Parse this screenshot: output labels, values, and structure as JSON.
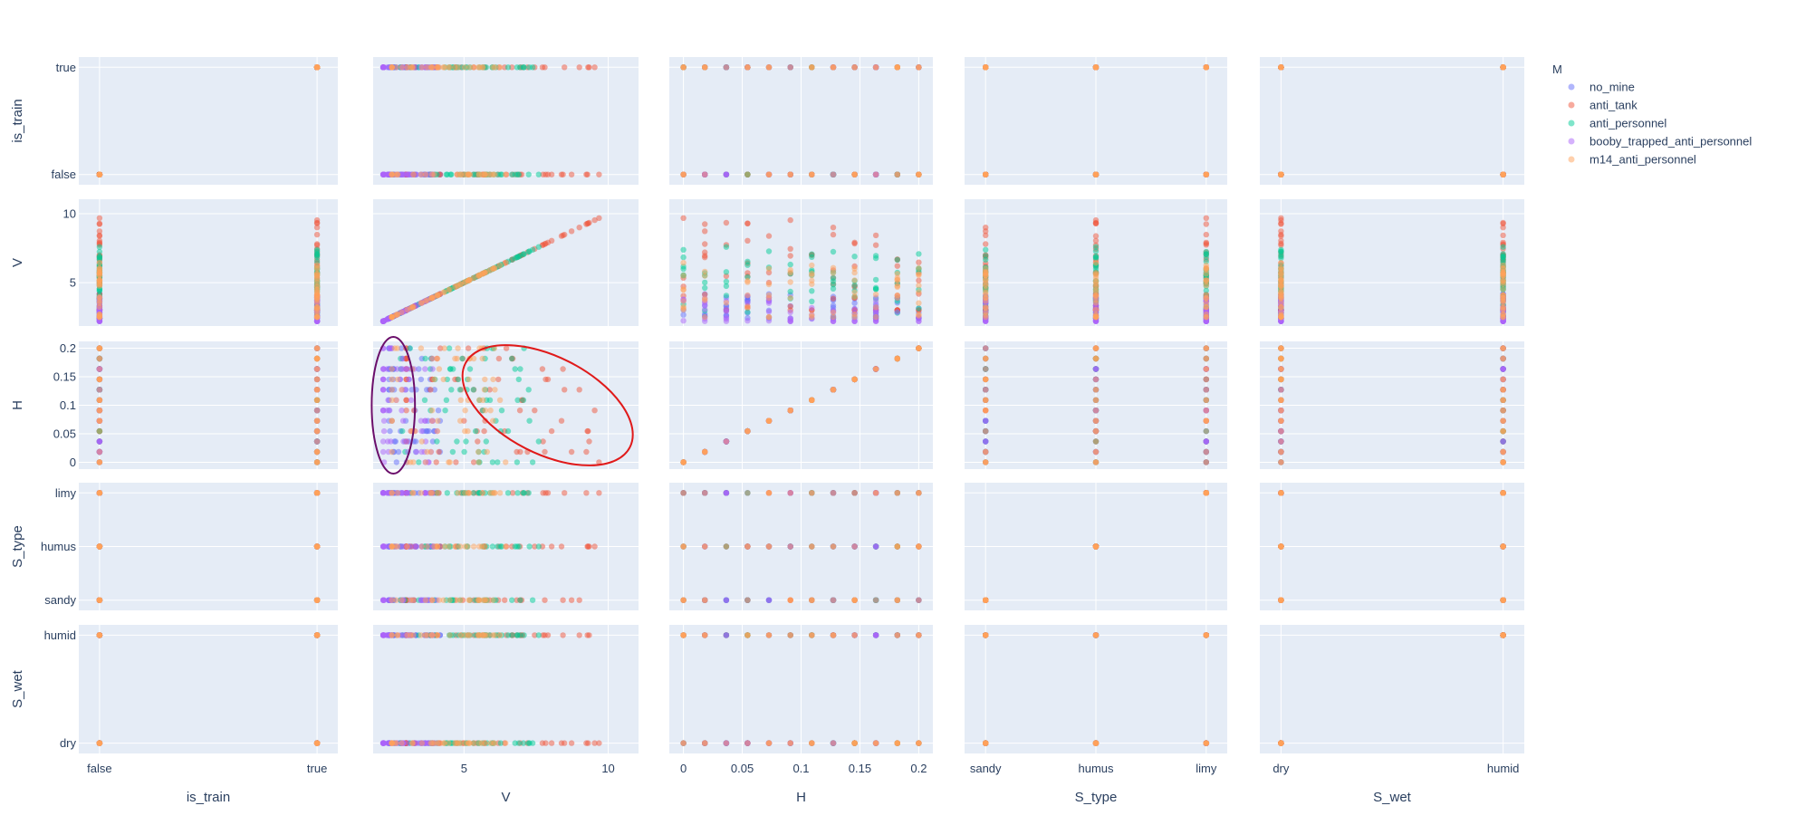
{
  "chart_data": {
    "type": "scatter",
    "subtype": "scatter_matrix",
    "dimensions": [
      {
        "name": "is_train",
        "kind": "category",
        "categories": [
          "false",
          "true"
        ],
        "ticks": [
          "false",
          "true"
        ]
      },
      {
        "name": "V",
        "kind": "numeric",
        "range": [
          1.85,
          11.05
        ],
        "ticks": [
          5,
          10
        ],
        "tick_labels": [
          "5",
          "10"
        ],
        "min": 2.2,
        "max": 10.6
      },
      {
        "name": "H",
        "kind": "numeric",
        "range": [
          -0.012,
          0.212
        ],
        "ticks": [
          0,
          0.05,
          0.1,
          0.15,
          0.2
        ],
        "tick_labels": [
          "0",
          "0.05",
          "0.1",
          "0.15",
          "0.2"
        ],
        "min": 0,
        "max": 0.2
      },
      {
        "name": "S_type",
        "kind": "category",
        "categories": [
          "sandy",
          "humus",
          "limy"
        ],
        "ticks": [
          "sandy",
          "humus",
          "limy"
        ]
      },
      {
        "name": "S_wet",
        "kind": "category",
        "categories": [
          "dry",
          "humid"
        ],
        "ticks": [
          "dry",
          "humid"
        ]
      }
    ],
    "legend": {
      "title": "M",
      "position": "top-right",
      "items": [
        {
          "name": "no_mine",
          "color": "#636efa"
        },
        {
          "name": "anti_tank",
          "color": "#ef553b"
        },
        {
          "name": "anti_personnel",
          "color": "#00cc96"
        },
        {
          "name": "booby_trapped_anti_personnel",
          "color": "#ab63fa"
        },
        {
          "name": "m14_anti_personnel",
          "color": "#ffa15a"
        }
      ]
    },
    "h_levels": [
      0,
      0.0182,
      0.0364,
      0.0545,
      0.0727,
      0.0909,
      0.1091,
      0.1273,
      0.1455,
      0.1636,
      0.1818,
      0.2
    ],
    "series_v_ranges": {
      "no_mine": [
        2.4,
        4.3
      ],
      "anti_tank": [
        3.0,
        10.6
      ],
      "anti_personnel": [
        2.8,
        8.0
      ],
      "booby_trapped_anti_personnel": [
        2.2,
        4.2
      ],
      "m14_anti_personnel": [
        2.5,
        6.5
      ]
    },
    "annotations": [
      {
        "shape": "ellipse",
        "color": "#6b0f6b",
        "panel": "V-H",
        "center": {
          "V": 2.55,
          "H": 0.1
        },
        "half_width_V": 0.75,
        "half_height_H": 0.12
      },
      {
        "shape": "ellipse",
        "color": "#e01a1a",
        "panel": "V-H",
        "center": {
          "V": 7.9,
          "H": 0.1
        },
        "half_width_V": 3.2,
        "half_height_H": 0.085,
        "rotation_deg": 27
      }
    ],
    "grid": true,
    "marker_opacity": 0.5
  }
}
